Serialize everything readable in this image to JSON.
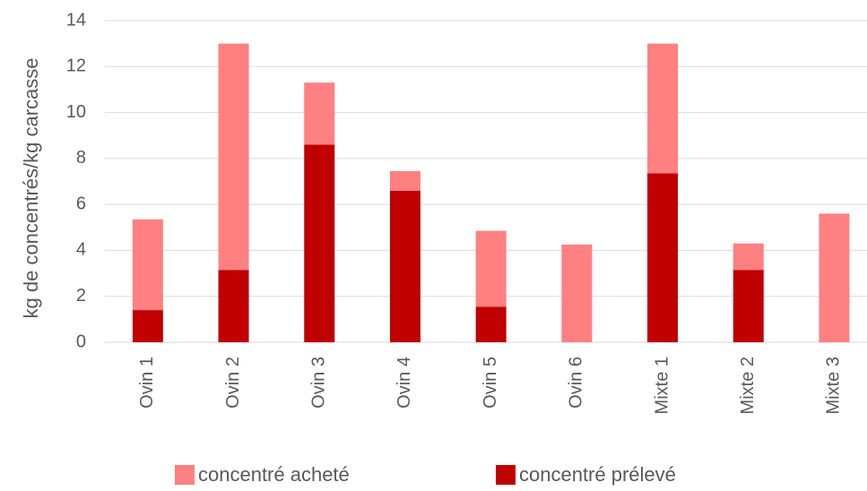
{
  "chart_data": {
    "type": "stacked_bar",
    "y_axis_label": "kg de concentrés/kg carcasse",
    "categories": [
      "Ovin 1",
      "Ovin 2",
      "Ovin 3",
      "Ovin 4",
      "Ovin 5",
      "Ovin 6",
      "Mixte 1",
      "Mixte 2",
      "Mixte 3"
    ],
    "series": [
      {
        "name": "concentré acheté",
        "color": "#ff8080",
        "values": [
          3.95,
          9.85,
          2.7,
          0.85,
          3.3,
          4.25,
          5.65,
          1.15,
          5.6
        ]
      },
      {
        "name": "concentré prélevé",
        "color": "#c00000",
        "values": [
          1.4,
          3.15,
          8.6,
          6.6,
          1.55,
          0,
          7.35,
          3.15,
          0
        ]
      }
    ],
    "ylim": [
      0,
      14
    ],
    "yticks": [
      0,
      2,
      4,
      6,
      8,
      10,
      12,
      14
    ],
    "grid": true,
    "legend": "bottom"
  }
}
